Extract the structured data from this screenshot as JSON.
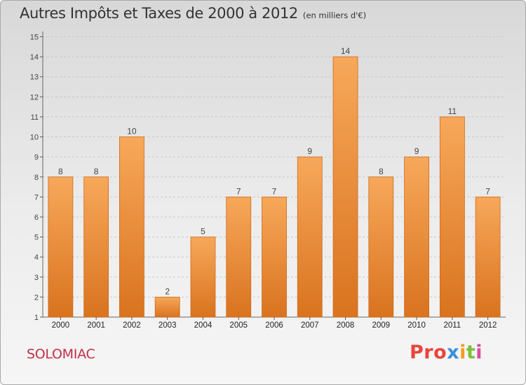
{
  "title": "Autres Impôts et Taxes de 2000 à 2012",
  "subtitle": "(en milliers d'€)",
  "commune": "SOLOMIAC",
  "brand": {
    "p1": "Pro",
    "p2": "x",
    "p3": "i",
    "p4": "t",
    "p5": "i"
  },
  "colors": {
    "bar_top": "#f7a85a",
    "bar_bottom": "#d9731f",
    "bar_edge": "#d06a1a",
    "grid": "#c8c8c8"
  },
  "chart_data": {
    "type": "bar",
    "categories": [
      "2000",
      "2001",
      "2002",
      "2003",
      "2004",
      "2005",
      "2006",
      "2007",
      "2008",
      "2009",
      "2010",
      "2011",
      "2012"
    ],
    "values": [
      8,
      8,
      10,
      2,
      5,
      7,
      7,
      9,
      14,
      8,
      9,
      11,
      7
    ],
    "ylim": [
      1,
      15
    ],
    "yticks": [
      1,
      2,
      3,
      4,
      5,
      6,
      7,
      8,
      9,
      10,
      11,
      12,
      13,
      14,
      15
    ],
    "grid": true,
    "xlabel": "",
    "ylabel": ""
  }
}
